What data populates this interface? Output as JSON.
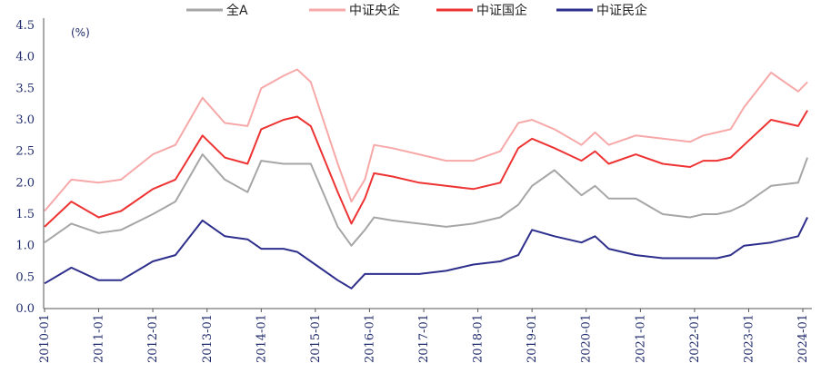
{
  "chart_data": {
    "type": "line",
    "unit_label": "(%)",
    "ylim": [
      0,
      4.5
    ],
    "y_ticks": [
      "0.0",
      "0.5",
      "1.0",
      "1.5",
      "2.0",
      "2.5",
      "3.0",
      "3.5",
      "4.0",
      "4.5"
    ],
    "x_ticks": [
      "2010-01",
      "2011-01",
      "2012-01",
      "2013-01",
      "2014-01",
      "2015-01",
      "2016-01",
      "2017-01",
      "2018-01",
      "2019-01",
      "2020-01",
      "2021-01",
      "2022-01",
      "2023-01",
      "2024-01"
    ],
    "legend_position": "top",
    "grid": false,
    "series": [
      {
        "name": "全A",
        "color": "#a6a6a6",
        "x": [
          "2010-01",
          "2010-07",
          "2011-01",
          "2011-06",
          "2012-01",
          "2012-06",
          "2012-12",
          "2013-05",
          "2013-10",
          "2014-01",
          "2014-06",
          "2014-09",
          "2014-12",
          "2015-06",
          "2015-09",
          "2015-12",
          "2016-02",
          "2016-06",
          "2016-12",
          "2017-06",
          "2017-12",
          "2018-06",
          "2018-10",
          "2019-01",
          "2019-06",
          "2019-12",
          "2020-03",
          "2020-06",
          "2020-12",
          "2021-06",
          "2021-12",
          "2022-03",
          "2022-06",
          "2022-09",
          "2022-12",
          "2023-06",
          "2023-12",
          "2024-02"
        ],
        "values": [
          1.05,
          1.35,
          1.2,
          1.25,
          1.5,
          1.7,
          2.45,
          2.05,
          1.85,
          2.35,
          2.3,
          2.3,
          2.3,
          1.3,
          1.0,
          1.25,
          1.45,
          1.4,
          1.35,
          1.3,
          1.35,
          1.45,
          1.65,
          1.95,
          2.2,
          1.8,
          1.95,
          1.75,
          1.75,
          1.5,
          1.45,
          1.5,
          1.5,
          1.55,
          1.65,
          1.95,
          2.0,
          2.4
        ]
      },
      {
        "name": "中证央企",
        "color": "#f7a8a8",
        "x": [
          "2010-01",
          "2010-07",
          "2011-01",
          "2011-06",
          "2012-01",
          "2012-06",
          "2012-12",
          "2013-05",
          "2013-10",
          "2014-01",
          "2014-06",
          "2014-09",
          "2014-12",
          "2015-06",
          "2015-09",
          "2015-12",
          "2016-02",
          "2016-06",
          "2016-12",
          "2017-06",
          "2017-12",
          "2018-06",
          "2018-10",
          "2019-01",
          "2019-06",
          "2019-12",
          "2020-03",
          "2020-06",
          "2020-12",
          "2021-06",
          "2021-12",
          "2022-03",
          "2022-06",
          "2022-09",
          "2022-12",
          "2023-06",
          "2023-12",
          "2024-02"
        ],
        "values": [
          1.55,
          2.05,
          2.0,
          2.05,
          2.45,
          2.6,
          3.35,
          2.95,
          2.9,
          3.5,
          3.7,
          3.8,
          3.6,
          2.3,
          1.7,
          2.05,
          2.6,
          2.55,
          2.45,
          2.35,
          2.35,
          2.5,
          2.95,
          3.0,
          2.85,
          2.6,
          2.8,
          2.6,
          2.75,
          2.7,
          2.65,
          2.75,
          2.8,
          2.85,
          3.2,
          3.75,
          3.45,
          3.6
        ]
      },
      {
        "name": "中证国企",
        "color": "#ee3333",
        "x": [
          "2010-01",
          "2010-07",
          "2011-01",
          "2011-06",
          "2012-01",
          "2012-06",
          "2012-12",
          "2013-05",
          "2013-10",
          "2014-01",
          "2014-06",
          "2014-09",
          "2014-12",
          "2015-06",
          "2015-09",
          "2015-12",
          "2016-02",
          "2016-06",
          "2016-12",
          "2017-06",
          "2017-12",
          "2018-06",
          "2018-10",
          "2019-01",
          "2019-06",
          "2019-12",
          "2020-03",
          "2020-06",
          "2020-12",
          "2021-06",
          "2021-12",
          "2022-03",
          "2022-06",
          "2022-09",
          "2022-12",
          "2023-06",
          "2023-12",
          "2024-02"
        ],
        "values": [
          1.3,
          1.7,
          1.45,
          1.55,
          1.9,
          2.05,
          2.75,
          2.4,
          2.3,
          2.85,
          3.0,
          3.05,
          2.9,
          1.85,
          1.35,
          1.75,
          2.15,
          2.1,
          2.0,
          1.95,
          1.9,
          2.0,
          2.55,
          2.7,
          2.55,
          2.35,
          2.5,
          2.3,
          2.45,
          2.3,
          2.25,
          2.35,
          2.35,
          2.4,
          2.6,
          3.0,
          2.9,
          3.15
        ]
      },
      {
        "name": "中证民企",
        "color": "#2e2f8c",
        "x": [
          "2010-01",
          "2010-07",
          "2011-01",
          "2011-06",
          "2012-01",
          "2012-06",
          "2012-12",
          "2013-05",
          "2013-10",
          "2014-01",
          "2014-06",
          "2014-09",
          "2014-12",
          "2015-06",
          "2015-09",
          "2015-12",
          "2016-02",
          "2016-06",
          "2016-12",
          "2017-06",
          "2017-12",
          "2018-06",
          "2018-10",
          "2019-01",
          "2019-06",
          "2019-12",
          "2020-03",
          "2020-06",
          "2020-12",
          "2021-06",
          "2021-12",
          "2022-03",
          "2022-06",
          "2022-09",
          "2022-12",
          "2023-06",
          "2023-12",
          "2024-02"
        ],
        "values": [
          0.4,
          0.65,
          0.45,
          0.45,
          0.75,
          0.85,
          1.4,
          1.15,
          1.1,
          0.95,
          0.95,
          0.9,
          0.75,
          0.45,
          0.32,
          0.55,
          0.55,
          0.55,
          0.55,
          0.6,
          0.7,
          0.75,
          0.85,
          1.25,
          1.15,
          1.05,
          1.15,
          0.95,
          0.85,
          0.8,
          0.8,
          0.8,
          0.8,
          0.85,
          1.0,
          1.05,
          1.15,
          1.45
        ]
      }
    ]
  }
}
